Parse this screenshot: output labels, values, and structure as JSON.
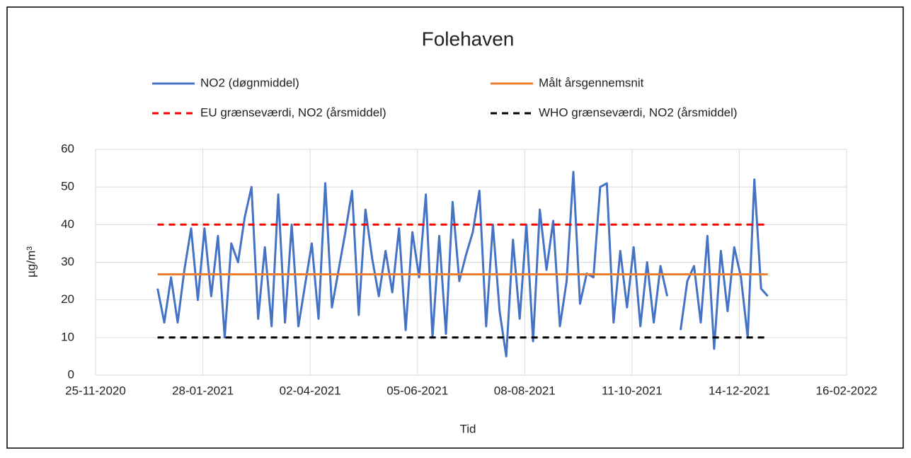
{
  "chart_data": {
    "type": "line",
    "title": "Folehaven",
    "xlabel": "Tid",
    "ylabel": "µg/m³",
    "xlim": [
      "25-11-2020",
      "16-02-2022"
    ],
    "xticks": [
      "25-11-2020",
      "28-01-2021",
      "02-04-2021",
      "05-06-2021",
      "08-08-2021",
      "11-10-2021",
      "14-12-2021",
      "16-02-2022"
    ],
    "ylim": [
      0,
      60
    ],
    "yticks": [
      0,
      10,
      20,
      30,
      40,
      50,
      60
    ],
    "grid": true,
    "series": [
      {
        "name": "NO2 (døgnmiddel)",
        "color": "#4472c4",
        "dashed": false,
        "x": [
          "01-01-2021",
          "05-01-2021",
          "09-01-2021",
          "13-01-2021",
          "17-01-2021",
          "21-01-2021",
          "25-01-2021",
          "29-01-2021",
          "02-02-2021",
          "06-02-2021",
          "10-02-2021",
          "14-02-2021",
          "18-02-2021",
          "22-02-2021",
          "26-02-2021",
          "02-03-2021",
          "06-03-2021",
          "10-03-2021",
          "14-03-2021",
          "18-03-2021",
          "22-03-2021",
          "26-03-2021",
          "30-03-2021",
          "03-04-2021",
          "07-04-2021",
          "11-04-2021",
          "15-04-2021",
          "19-04-2021",
          "23-04-2021",
          "27-04-2021",
          "01-05-2021",
          "05-05-2021",
          "09-05-2021",
          "13-05-2021",
          "17-05-2021",
          "21-05-2021",
          "25-05-2021",
          "29-05-2021",
          "02-06-2021",
          "06-06-2021",
          "10-06-2021",
          "14-06-2021",
          "18-06-2021",
          "22-06-2021",
          "26-06-2021",
          "30-06-2021",
          "04-07-2021",
          "08-07-2021",
          "12-07-2021",
          "16-07-2021",
          "20-07-2021",
          "24-07-2021",
          "28-07-2021",
          "01-08-2021",
          "05-08-2021",
          "09-08-2021",
          "13-08-2021",
          "17-08-2021",
          "21-08-2021",
          "25-08-2021",
          "29-08-2021",
          "02-09-2021",
          "06-09-2021",
          "10-09-2021",
          "14-09-2021",
          "18-09-2021",
          "22-09-2021",
          "26-09-2021",
          "30-09-2021",
          "04-10-2021",
          "08-10-2021",
          "12-10-2021",
          "16-10-2021",
          "20-10-2021",
          "24-10-2021",
          "28-10-2021",
          "01-11-2021",
          "05-11-2021",
          "09-11-2021",
          "13-11-2021",
          "17-11-2021",
          "21-11-2021",
          "25-11-2021",
          "29-11-2021",
          "03-12-2021",
          "07-12-2021",
          "11-12-2021",
          "15-12-2021",
          "19-12-2021",
          "23-12-2021",
          "27-12-2021",
          "31-12-2021"
        ],
        "values": [
          23,
          14,
          26,
          14,
          28,
          39,
          20,
          39,
          21,
          37,
          10,
          35,
          30,
          42,
          50,
          15,
          34,
          13,
          48,
          14,
          40,
          13,
          24,
          35,
          15,
          51,
          18,
          28,
          38,
          49,
          16,
          44,
          31,
          21,
          33,
          22,
          39,
          12,
          38,
          26,
          48,
          10,
          37,
          11,
          46,
          25,
          32,
          38,
          49,
          13,
          40,
          17,
          5,
          36,
          15,
          40,
          9,
          44,
          28,
          41,
          13,
          25,
          54,
          19,
          27,
          26,
          50,
          51,
          14,
          33,
          18,
          34,
          13,
          30,
          14,
          29,
          21,
          null,
          12,
          25,
          29,
          14,
          37,
          7,
          33,
          17,
          34,
          26,
          10,
          52,
          23,
          21
        ]
      },
      {
        "name": "Målt årsgennemsnit",
        "color": "#ed7d31",
        "dashed": false,
        "x": [
          "01-01-2021",
          "31-12-2021"
        ],
        "values": [
          26.8,
          26.8
        ]
      },
      {
        "name": "EU grænseværdi, NO2 (årsmiddel)",
        "color": "#ff0000",
        "dashed": true,
        "x": [
          "01-01-2021",
          "31-12-2021"
        ],
        "values": [
          40,
          40
        ]
      },
      {
        "name": "WHO grænseværdi, NO2 (årsmiddel)",
        "color": "#000000",
        "dashed": true,
        "x": [
          "01-01-2021",
          "31-12-2021"
        ],
        "values": [
          10,
          10
        ]
      }
    ]
  }
}
